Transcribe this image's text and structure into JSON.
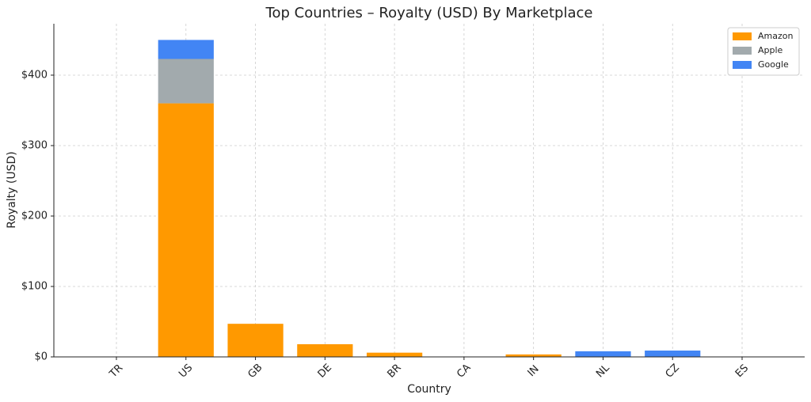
{
  "chart_data": {
    "type": "stacked_bar",
    "title": "Top Countries – Royalty (USD) By Marketplace",
    "x_label": "Country",
    "y_label": "Royalty (USD)",
    "categories": [
      "TR",
      "US",
      "GB",
      "DE",
      "BR",
      "CA",
      "IN",
      "NL",
      "CZ",
      "ES"
    ],
    "series": [
      {
        "name": "Amazon",
        "color": "#ff9900",
        "values": [
          0,
          360,
          47,
          18,
          6,
          0,
          3.5,
          0,
          0,
          0
        ]
      },
      {
        "name": "Apple",
        "color": "#a2aaad",
        "values": [
          0,
          63,
          0,
          0,
          0,
          0,
          0,
          0,
          0,
          0
        ]
      },
      {
        "name": "Google",
        "color": "#4285f4",
        "values": [
          0,
          27,
          0,
          0,
          0,
          0,
          0,
          8,
          9,
          0
        ]
      }
    ],
    "ylim": [
      0,
      473
    ],
    "yticks": [
      {
        "value": 0,
        "label": "$0"
      },
      {
        "value": 100,
        "label": "$100"
      },
      {
        "value": 200,
        "label": "$200"
      },
      {
        "value": 300,
        "label": "$300"
      },
      {
        "value": 400,
        "label": "$400"
      }
    ],
    "grid": true,
    "legend": "upper right"
  }
}
